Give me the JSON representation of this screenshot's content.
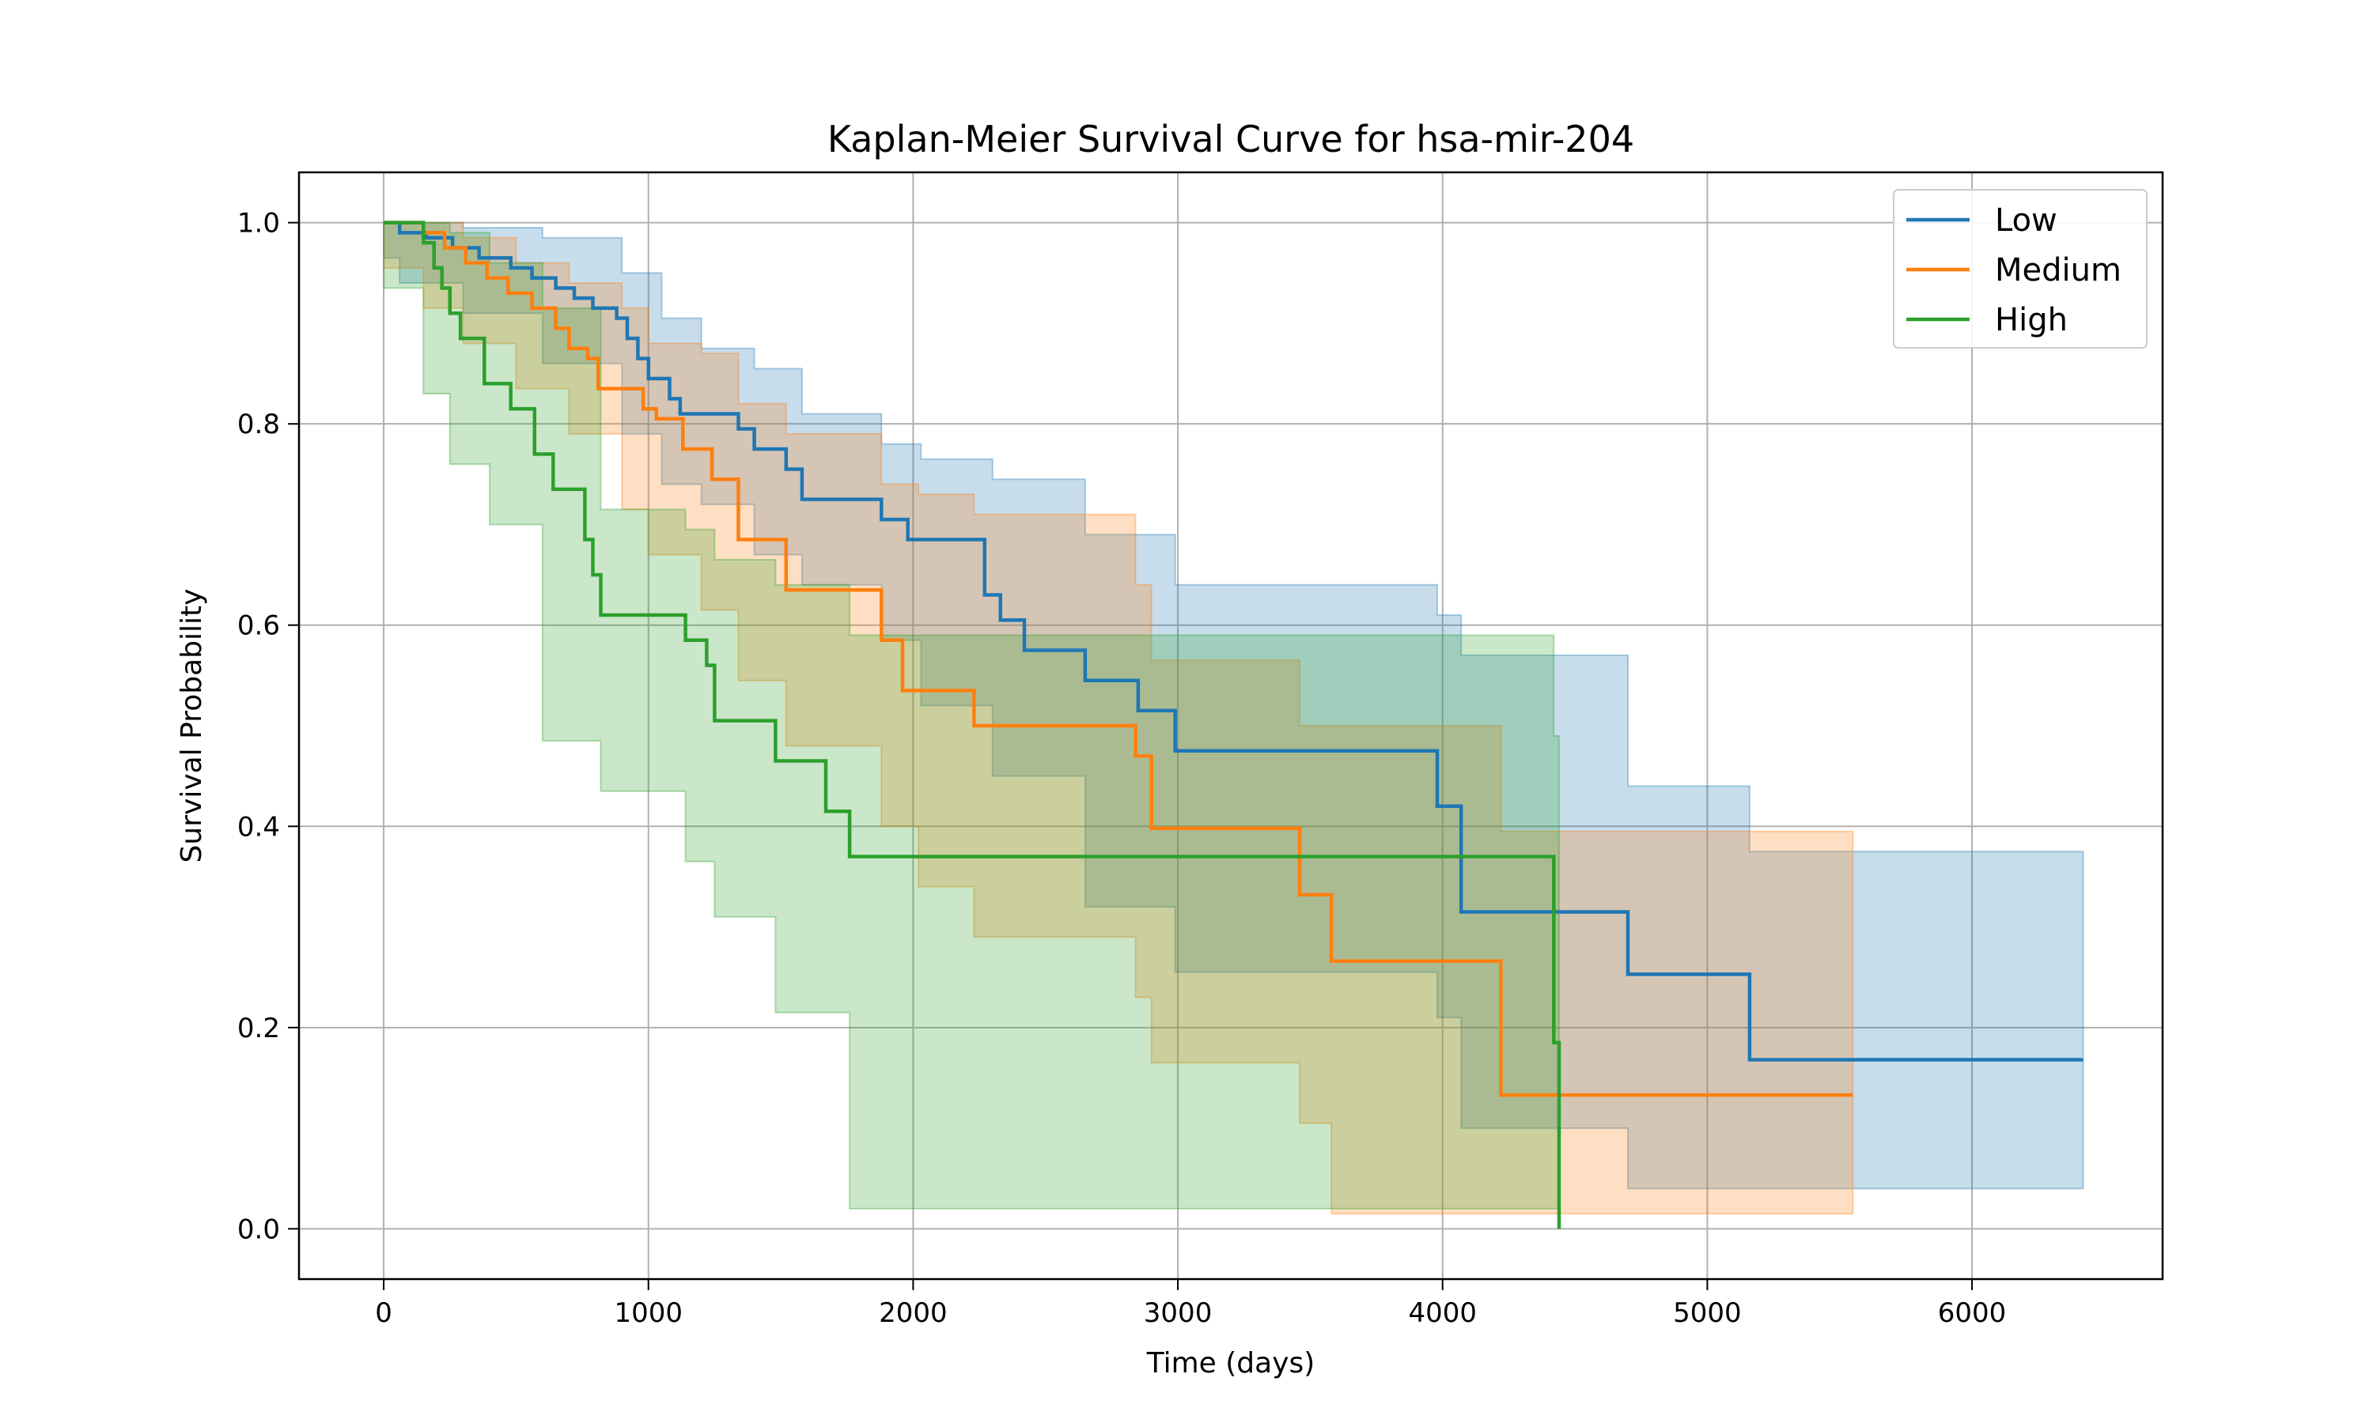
{
  "chart_data": {
    "type": "line",
    "title": "Kaplan-Meier Survival Curve for hsa-mir-204",
    "xlabel": "Time (days)",
    "ylabel": "Survival Probability",
    "xlim": [
      -320,
      6720
    ],
    "ylim": [
      -0.05,
      1.05
    ],
    "xticks": [
      0,
      1000,
      2000,
      3000,
      4000,
      5000,
      6000
    ],
    "yticks": [
      0.0,
      0.2,
      0.4,
      0.6,
      0.8,
      1.0
    ],
    "xtick_labels": [
      "0",
      "1000",
      "2000",
      "3000",
      "4000",
      "5000",
      "6000"
    ],
    "ytick_labels": [
      "0.0",
      "0.2",
      "0.4",
      "0.6",
      "0.8",
      "1.0"
    ],
    "grid": true,
    "legend_position": "top-right",
    "series": [
      {
        "name": "Low",
        "color": "#1f77b4",
        "x": [
          0,
          60,
          160,
          260,
          360,
          480,
          560,
          650,
          720,
          790,
          880,
          920,
          960,
          1000,
          1080,
          1120,
          1340,
          1400,
          1520,
          1580,
          1880,
          1980,
          2270,
          2330,
          2420,
          2650,
          2850,
          2990,
          3980,
          4070,
          4700,
          5160,
          6420
        ],
        "y": [
          1.0,
          0.99,
          0.985,
          0.975,
          0.965,
          0.955,
          0.945,
          0.935,
          0.925,
          0.915,
          0.905,
          0.885,
          0.865,
          0.845,
          0.825,
          0.81,
          0.795,
          0.775,
          0.755,
          0.725,
          0.705,
          0.685,
          0.63,
          0.605,
          0.575,
          0.545,
          0.515,
          0.475,
          0.42,
          0.315,
          0.253,
          0.168,
          0.168
        ],
        "ci_x": [
          0,
          60,
          300,
          600,
          900,
          1050,
          1200,
          1400,
          1580,
          1880,
          2030,
          2300,
          2650,
          2990,
          3980,
          4070,
          4700,
          5160,
          6420
        ],
        "ci_upper": [
          1.0,
          1.0,
          0.995,
          0.985,
          0.95,
          0.905,
          0.875,
          0.855,
          0.81,
          0.78,
          0.765,
          0.745,
          0.69,
          0.64,
          0.61,
          0.57,
          0.44,
          0.375,
          0.375
        ],
        "ci_lower": [
          1.0,
          0.965,
          0.94,
          0.91,
          0.86,
          0.79,
          0.74,
          0.72,
          0.67,
          0.64,
          0.585,
          0.52,
          0.45,
          0.32,
          0.255,
          0.21,
          0.1,
          0.04,
          0.04
        ]
      },
      {
        "name": "Medium",
        "color": "#ff7f0e",
        "x": [
          0,
          150,
          230,
          310,
          390,
          470,
          560,
          650,
          700,
          770,
          810,
          980,
          1030,
          1130,
          1240,
          1340,
          1520,
          1880,
          1960,
          2020,
          2230,
          2840,
          2900,
          3460,
          3580,
          4220,
          5550
        ],
        "y": [
          1.0,
          0.99,
          0.975,
          0.96,
          0.945,
          0.93,
          0.915,
          0.895,
          0.875,
          0.865,
          0.835,
          0.815,
          0.805,
          0.775,
          0.745,
          0.685,
          0.635,
          0.585,
          0.535,
          0.535,
          0.5,
          0.47,
          0.398,
          0.332,
          0.266,
          0.133,
          0.133
        ],
        "ci_x": [
          0,
          150,
          300,
          500,
          700,
          900,
          1000,
          1200,
          1340,
          1520,
          1880,
          2020,
          2230,
          2840,
          2900,
          3460,
          3580,
          4220,
          5550
        ],
        "ci_upper": [
          1.0,
          1.0,
          0.985,
          0.96,
          0.94,
          0.915,
          0.88,
          0.87,
          0.82,
          0.79,
          0.74,
          0.73,
          0.71,
          0.64,
          0.565,
          0.5,
          0.5,
          0.395,
          0.395
        ],
        "ci_lower": [
          1.0,
          0.955,
          0.915,
          0.88,
          0.835,
          0.79,
          0.715,
          0.67,
          0.615,
          0.545,
          0.48,
          0.4,
          0.34,
          0.29,
          0.23,
          0.165,
          0.105,
          0.015,
          0.015
        ]
      },
      {
        "name": "High",
        "color": "#2ca02c",
        "x": [
          0,
          150,
          190,
          220,
          250,
          290,
          380,
          480,
          570,
          640,
          760,
          790,
          820,
          1140,
          1220,
          1250,
          1480,
          1670,
          1760,
          4420,
          4440
        ],
        "y": [
          1.0,
          0.98,
          0.955,
          0.935,
          0.91,
          0.885,
          0.84,
          0.815,
          0.77,
          0.735,
          0.685,
          0.65,
          0.61,
          0.585,
          0.56,
          0.505,
          0.465,
          0.415,
          0.37,
          0.185,
          0.0
        ],
        "ci_x": [
          0,
          150,
          250,
          400,
          600,
          820,
          1140,
          1250,
          1480,
          1760,
          4420,
          4440
        ],
        "ci_upper": [
          1.0,
          1.0,
          0.99,
          0.96,
          0.915,
          0.715,
          0.695,
          0.665,
          0.64,
          0.59,
          0.49,
          0.49
        ],
        "ci_lower": [
          1.0,
          0.935,
          0.83,
          0.76,
          0.7,
          0.485,
          0.435,
          0.365,
          0.31,
          0.215,
          0.02,
          0.02
        ]
      }
    ]
  }
}
